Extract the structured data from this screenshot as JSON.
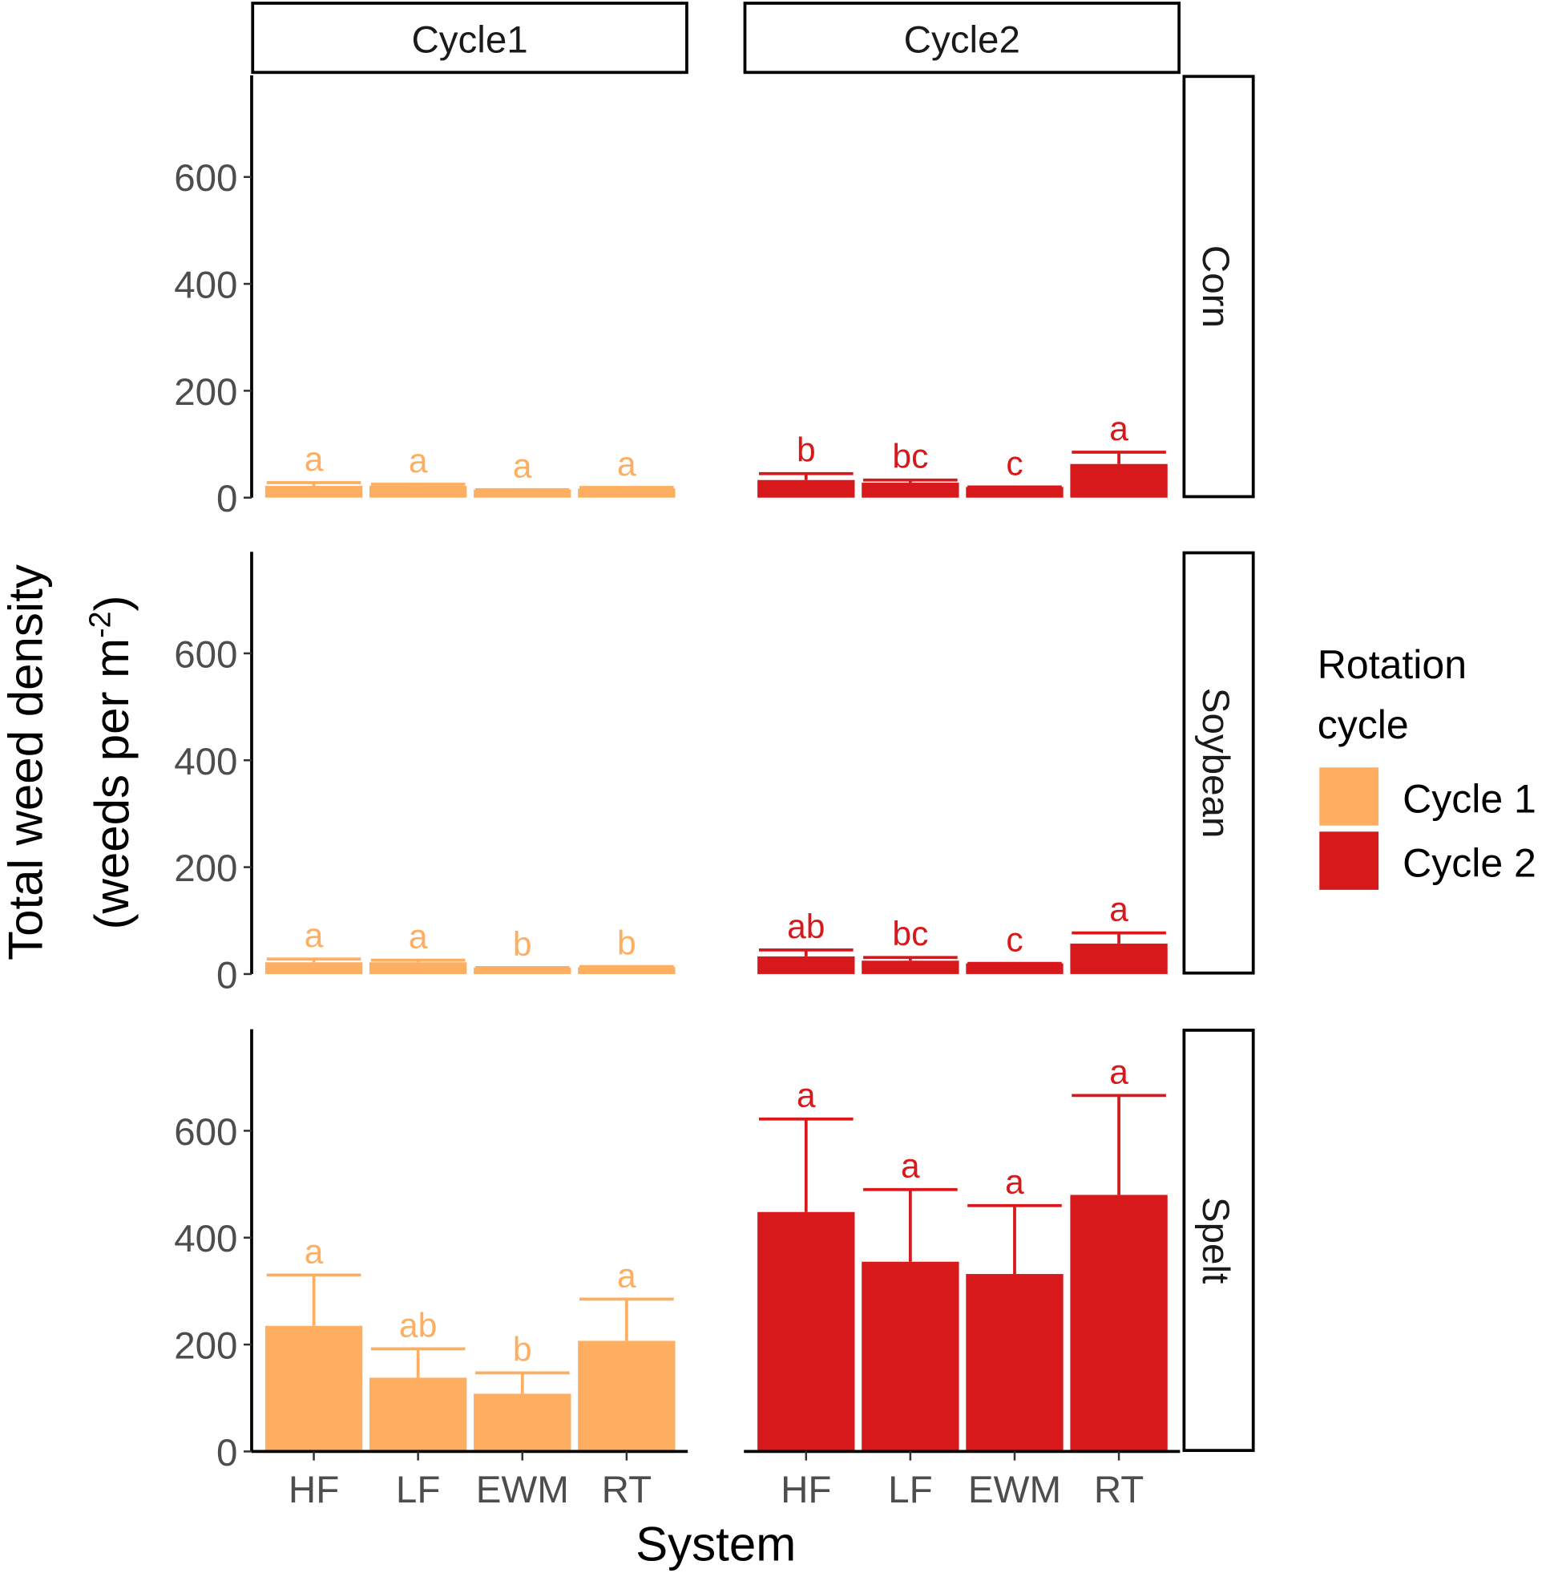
{
  "chart_data": {
    "type": "bar",
    "xlabel": "System",
    "ylabel_line1": "Total weed density",
    "ylabel_line2": "(weeds per m",
    "ylabel_sup": "-2",
    "ylabel_close": ")",
    "ylim": [
      0,
      790
    ],
    "yticks": [
      0,
      200,
      400,
      600
    ],
    "categories": [
      "HF",
      "LF",
      "EWM",
      "RT"
    ],
    "columns": [
      "Cycle1",
      "Cycle2"
    ],
    "rows": [
      "Corn",
      "Soybean",
      "Spelt"
    ],
    "legend": {
      "title_line1": "Rotation",
      "title_line2": "cycle",
      "position": "right",
      "entries": [
        {
          "name": "Cycle 1",
          "color": "#FDAE61"
        },
        {
          "name": "Cycle 2",
          "color": "#D7191C"
        }
      ]
    },
    "panels": [
      {
        "row": "Corn",
        "column": "Cycle1",
        "values": [
          22,
          22,
          15,
          17
        ],
        "error_upper": [
          28,
          25,
          15,
          19
        ],
        "letters": [
          "a",
          "a",
          "a",
          "a"
        ]
      },
      {
        "row": "Corn",
        "column": "Cycle2",
        "values": [
          33,
          28,
          20,
          63
        ],
        "error_upper": [
          45,
          33,
          20,
          85
        ],
        "letters": [
          "b",
          "bc",
          "c",
          "a"
        ]
      },
      {
        "row": "Soybean",
        "column": "Cycle1",
        "values": [
          22,
          22,
          12,
          13
        ],
        "error_upper": [
          28,
          26,
          12,
          14
        ],
        "letters": [
          "a",
          "a",
          "b",
          "b"
        ]
      },
      {
        "row": "Soybean",
        "column": "Cycle2",
        "values": [
          33,
          25,
          20,
          57
        ],
        "error_upper": [
          45,
          31,
          20,
          77
        ],
        "letters": [
          "ab",
          "bc",
          "c",
          "a"
        ]
      },
      {
        "row": "Spelt",
        "column": "Cycle1",
        "values": [
          235,
          138,
          108,
          207
        ],
        "error_upper": [
          330,
          192,
          147,
          285
        ],
        "letters": [
          "a",
          "ab",
          "b",
          "a"
        ]
      },
      {
        "row": "Spelt",
        "column": "Cycle2",
        "values": [
          448,
          355,
          332,
          480
        ],
        "error_upper": [
          622,
          490,
          460,
          666
        ],
        "letters": [
          "a",
          "a",
          "a",
          "a"
        ]
      }
    ]
  }
}
